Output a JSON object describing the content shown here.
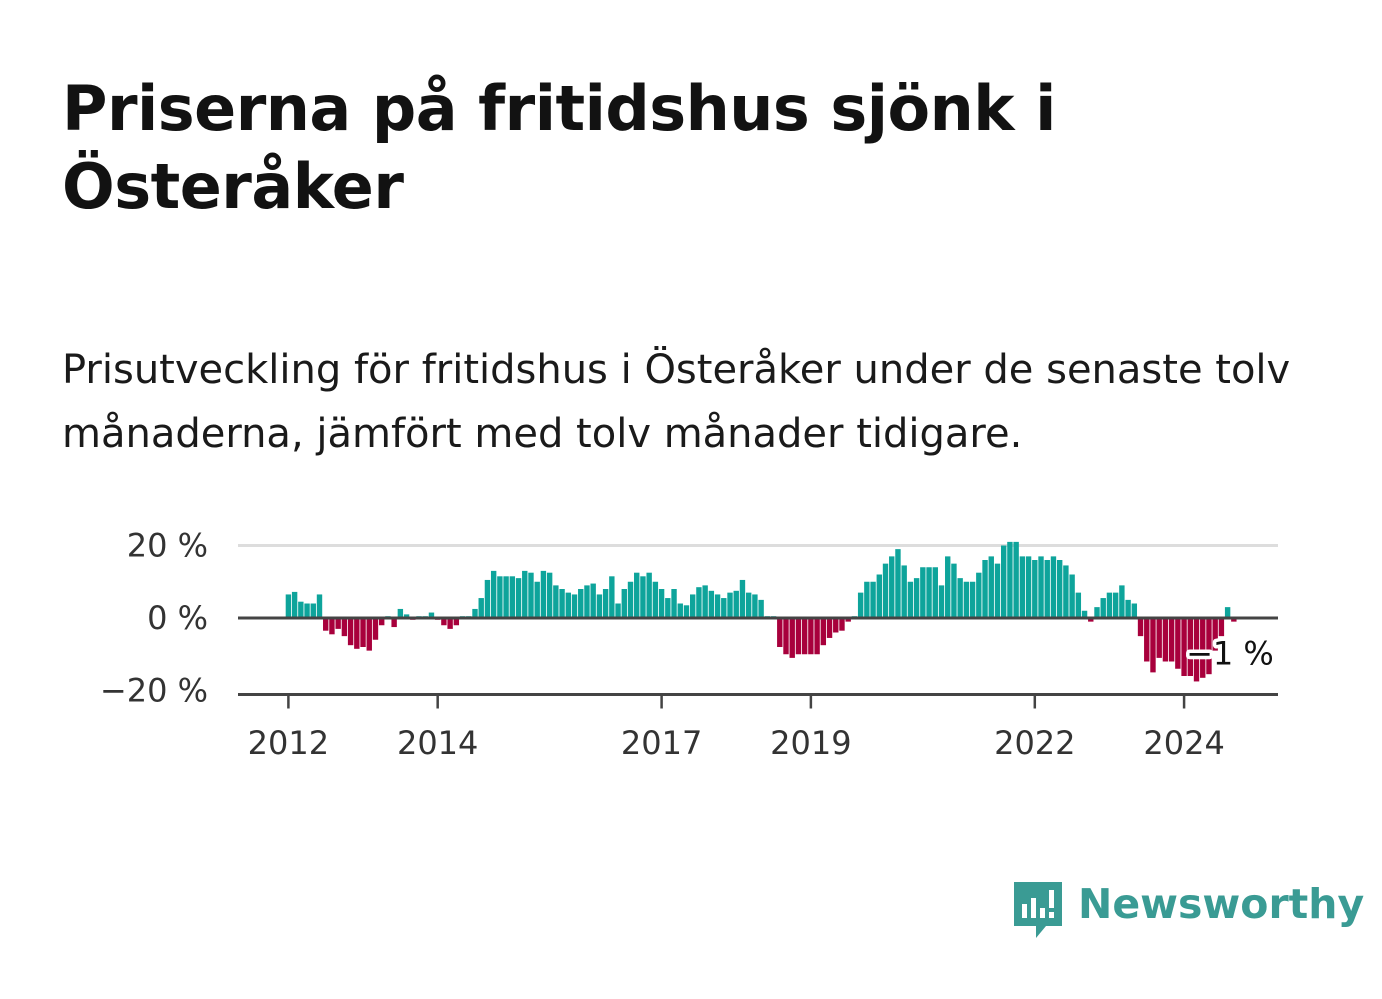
{
  "title": "Priserna på fritidshus sjönk i Österåker",
  "subtitle": "Prisutveckling för fritidshus i Österåker under de senaste tolv månaderna, jämfört med tolv månader tidigare.",
  "brand": {
    "name": "Newsworthy",
    "color": "#3a9b94",
    "icon": "newsworthy-logo-icon"
  },
  "colors": {
    "positive": "#0ea49b",
    "negative": "#a8003c",
    "axis": "#444444",
    "grid": "#dddddd"
  },
  "chart_data": {
    "type": "bar",
    "title": "",
    "xlabel": "",
    "ylabel": "",
    "ylim": [
      -20,
      20
    ],
    "yticks": [
      20,
      0,
      -20
    ],
    "ytick_labels": [
      "20 %",
      "0 %",
      "−20 %"
    ],
    "xtick_labels": [
      "2012",
      "2014",
      "2017",
      "2019",
      "2022",
      "2024"
    ],
    "xtick_index": [
      0,
      24,
      60,
      84,
      120,
      144
    ],
    "start": "2012-01",
    "end_label": "−1 %",
    "values": [
      6.5,
      7.2,
      4.5,
      4.0,
      4.0,
      6.5,
      -3.5,
      -4.5,
      -3.0,
      -5.0,
      -7.5,
      -8.5,
      -8.0,
      -9.0,
      -6.0,
      -2.0,
      0.5,
      -2.5,
      2.5,
      1.0,
      -0.5,
      0.5,
      0.5,
      1.5,
      -0.5,
      -2.0,
      -3.0,
      -2.0,
      0.5,
      0.5,
      2.5,
      5.5,
      10.5,
      13.0,
      11.5,
      11.5,
      11.5,
      11.0,
      13.0,
      12.5,
      10.0,
      13.0,
      12.5,
      9.0,
      8.0,
      7.0,
      6.5,
      8.0,
      9.0,
      9.5,
      6.5,
      8.0,
      11.5,
      4.0,
      8.0,
      10.0,
      12.5,
      11.5,
      12.5,
      10.0,
      8.0,
      5.5,
      8.0,
      4.0,
      3.5,
      6.5,
      8.5,
      9.0,
      7.5,
      6.5,
      5.5,
      7.0,
      7.5,
      10.5,
      7.0,
      6.5,
      5.0,
      0.5,
      0.5,
      -8.0,
      -10.0,
      -11.0,
      -10.0,
      -10.0,
      -10.0,
      -10.0,
      -7.5,
      -5.5,
      -4.0,
      -3.5,
      -1.0,
      0.5,
      7.0,
      10.0,
      10.0,
      12.0,
      15.0,
      17.0,
      19.0,
      14.5,
      10.0,
      11.0,
      14.0,
      14.0,
      14.0,
      9.0,
      17.0,
      15.0,
      11.0,
      10.0,
      10.0,
      12.5,
      16.0,
      17.0,
      15.0,
      20.0,
      21.0,
      21.0,
      17.0,
      17.0,
      16.0,
      17.0,
      16.0,
      17.0,
      16.0,
      14.5,
      12.0,
      7.0,
      2.0,
      -1.0,
      3.0,
      5.5,
      7.0,
      7.0,
      9.0,
      5.0,
      4.0,
      -5.0,
      -12.0,
      -15.0,
      -11.0,
      -12.0,
      -12.0,
      -14.0,
      -16.0,
      -16.0,
      -17.5,
      -16.5,
      -15.5,
      -9.0,
      -5.0,
      3.0,
      -1.0
    ]
  }
}
